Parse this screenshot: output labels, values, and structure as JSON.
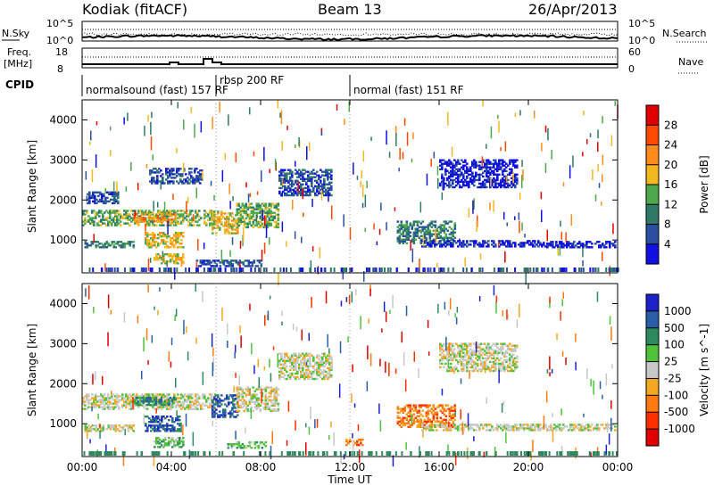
{
  "header": {
    "station": "Kodiak (fitACF)",
    "beam": "Beam 13",
    "date": "26/Apr/2013"
  },
  "top_panels": {
    "nsky_label": "N.Sky",
    "nsky_ticks": [
      "10^5",
      "10^0"
    ],
    "nsearch_label": "N.Search",
    "nsearch_ticks": [
      "10^5",
      "10^0"
    ],
    "freq_label_1": "Freq.",
    "freq_label_2": "[MHz]",
    "freq_ticks": [
      "18",
      "8"
    ],
    "nave_label": "Nave",
    "nave_ticks": [
      "60",
      "0"
    ],
    "cpid_label": "CPID",
    "cpid_segments": [
      {
        "label": "normalsound (fast) 157 RF",
        "start_hour": 0,
        "end_hour": 5.9
      },
      {
        "label": "rbsp 200 RF",
        "start_hour": 6.0,
        "end_hour": 11.9
      },
      {
        "label": "normal (fast) 151 RF",
        "start_hour": 12.0,
        "end_hour": 24
      }
    ]
  },
  "chart_data": [
    {
      "type": "heatmap",
      "title": "Power",
      "xlabel": "Time UT",
      "ylabel": "Slant Range [km]",
      "x_range_hours": [
        0,
        24
      ],
      "x_tick_labels": [
        "00:00",
        "04:00",
        "08:00",
        "12:00",
        "16:00",
        "20:00",
        "00:00"
      ],
      "ylim": [
        180,
        4500
      ],
      "y_tick_values": [
        1000,
        2000,
        3000,
        4000
      ],
      "y_tick_labels": [
        "1000",
        "2000",
        "3000",
        "4000"
      ],
      "colorbar_label": "Power [dB]",
      "colorbar_ticks": [
        "28",
        "24",
        "20",
        "16",
        "12",
        "8",
        "4"
      ],
      "colorbar_colors": [
        "#e00000",
        "#ff4a00",
        "#ff8c1a",
        "#f2b820",
        "#4ea84c",
        "#2e7a66",
        "#2a4fa0",
        "#1010e0"
      ],
      "echo_regions": [
        {
          "t0": 0.0,
          "t1": 5.8,
          "r0": 1350,
          "r1": 1750,
          "level": 3
        },
        {
          "t0": 2.3,
          "t1": 4.2,
          "r0": 1450,
          "r1": 1650,
          "level": 5
        },
        {
          "t0": 2.8,
          "t1": 4.5,
          "r0": 800,
          "r1": 1200,
          "level": 4
        },
        {
          "t0": 3.2,
          "t1": 4.5,
          "r0": 400,
          "r1": 650,
          "level": 4
        },
        {
          "t0": 0.1,
          "t1": 2.3,
          "r0": 800,
          "r1": 950,
          "level": 2
        },
        {
          "t0": 0.2,
          "t1": 1.6,
          "r0": 1900,
          "r1": 2200,
          "level": 1
        },
        {
          "t0": 3.0,
          "t1": 5.4,
          "r0": 2400,
          "r1": 2800,
          "level": 1
        },
        {
          "t0": 5.8,
          "t1": 7.0,
          "r0": 1150,
          "r1": 1700,
          "level": 4
        },
        {
          "t0": 6.9,
          "t1": 8.8,
          "r0": 1300,
          "r1": 1900,
          "level": 3
        },
        {
          "t0": 8.8,
          "t1": 11.2,
          "r0": 2100,
          "r1": 2750,
          "level": 1
        },
        {
          "t0": 5.1,
          "t1": 8.0,
          "r0": 330,
          "r1": 470,
          "level": 1
        },
        {
          "t0": 14.1,
          "t1": 16.7,
          "r0": 900,
          "r1": 1450,
          "level": 2
        },
        {
          "t0": 15.2,
          "t1": 20.8,
          "r0": 820,
          "r1": 1000,
          "level": 0
        },
        {
          "t0": 20.8,
          "t1": 23.9,
          "r0": 800,
          "r1": 950,
          "level": 0
        },
        {
          "t0": 16.0,
          "t1": 19.5,
          "r0": 2300,
          "r1": 3000,
          "level": 0
        }
      ]
    },
    {
      "type": "heatmap",
      "title": "Velocity",
      "xlabel": "Time UT",
      "ylabel": "Slant Range [km]",
      "x_range_hours": [
        0,
        24
      ],
      "x_tick_labels": [
        "00:00",
        "04:00",
        "08:00",
        "12:00",
        "16:00",
        "20:00",
        "00:00"
      ],
      "ylim": [
        180,
        4500
      ],
      "y_tick_values": [
        1000,
        2000,
        3000,
        4000
      ],
      "y_tick_labels": [
        "1000",
        "2000",
        "3000",
        "4000"
      ],
      "colorbar_label": "Velocity [m s^-1]",
      "colorbar_ticks": [
        "1000",
        "500",
        "100",
        "25",
        "-25",
        "-100",
        "-500",
        "-1000"
      ],
      "colorbar_colors": [
        "#1c22c8",
        "#2a5fa8",
        "#2e8a5e",
        "#4fc23a",
        "#c8c8c8",
        "#f2a820",
        "#ff7a10",
        "#ff3000",
        "#e00000"
      ],
      "echo_regions": [
        {
          "t0": 0.0,
          "t1": 6.0,
          "r0": 1350,
          "r1": 1750,
          "level": 4
        },
        {
          "t0": 2.3,
          "t1": 4.2,
          "r0": 1450,
          "r1": 1650,
          "level": 2
        },
        {
          "t0": 2.8,
          "t1": 4.4,
          "r0": 800,
          "r1": 1200,
          "level": 1
        },
        {
          "t0": 3.2,
          "t1": 4.5,
          "r0": 400,
          "r1": 650,
          "level": 3
        },
        {
          "t0": 0.1,
          "t1": 2.3,
          "r0": 800,
          "r1": 950,
          "level": 4
        },
        {
          "t0": 5.8,
          "t1": 7.0,
          "r0": 1150,
          "r1": 1700,
          "level": 1
        },
        {
          "t0": 6.9,
          "t1": 8.8,
          "r0": 1300,
          "r1": 1900,
          "level": 4
        },
        {
          "t0": 8.8,
          "t1": 11.2,
          "r0": 2100,
          "r1": 2750,
          "level": 4
        },
        {
          "t0": 6.5,
          "t1": 8.2,
          "r0": 380,
          "r1": 520,
          "level": 3
        },
        {
          "t0": 14.1,
          "t1": 16.7,
          "r0": 900,
          "r1": 1450,
          "level": 6
        },
        {
          "t0": 15.2,
          "t1": 23.9,
          "r0": 820,
          "r1": 960,
          "level": 4
        },
        {
          "t0": 16.0,
          "t1": 19.5,
          "r0": 2300,
          "r1": 3000,
          "level": 4
        },
        {
          "t0": 11.8,
          "t1": 12.6,
          "r0": 450,
          "r1": 600,
          "level": 6
        }
      ]
    }
  ]
}
